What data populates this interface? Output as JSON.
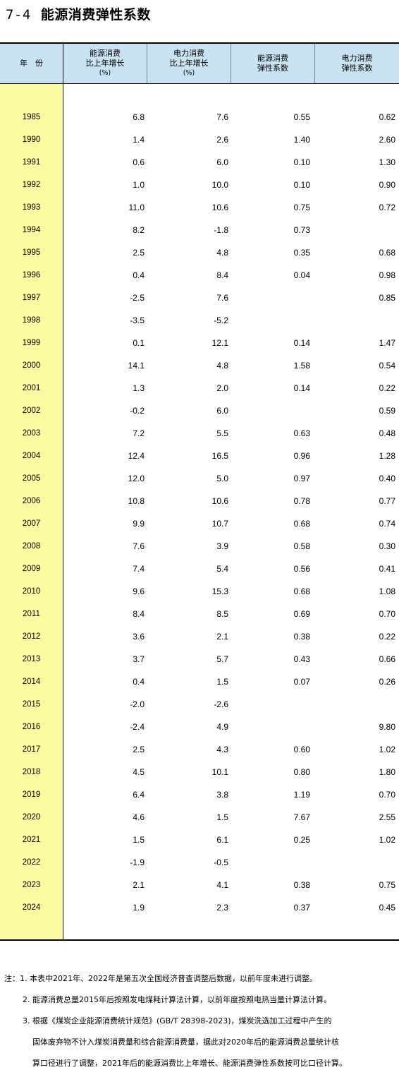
{
  "title": {
    "number": "7-4",
    "text": "能源消费弹性系数"
  },
  "headers": [
    {
      "lines": [
        "年　份"
      ]
    },
    {
      "lines": [
        "能源消费",
        "比上年增长",
        "(%)"
      ]
    },
    {
      "lines": [
        "电力消费",
        "比上年增长",
        "(%)"
      ]
    },
    {
      "lines": [
        "能源消费",
        "弹性系数"
      ]
    },
    {
      "lines": [
        "电力消费",
        "弹性系数"
      ]
    }
  ],
  "rows": [
    {
      "year": "1985",
      "energy_growth": "6.8",
      "power_growth": "7.6",
      "energy_elasticity": "0.55",
      "power_elasticity": "0.62"
    },
    {
      "year": "1990",
      "energy_growth": "1.4",
      "power_growth": "2.6",
      "energy_elasticity": "1.40",
      "power_elasticity": "2.60"
    },
    {
      "year": "1991",
      "energy_growth": "0.6",
      "power_growth": "6.0",
      "energy_elasticity": "0.10",
      "power_elasticity": "1.30"
    },
    {
      "year": "1992",
      "energy_growth": "1.0",
      "power_growth": "10.0",
      "energy_elasticity": "0.10",
      "power_elasticity": "0.90"
    },
    {
      "year": "1993",
      "energy_growth": "11.0",
      "power_growth": "10.6",
      "energy_elasticity": "0.75",
      "power_elasticity": "0.72"
    },
    {
      "year": "1994",
      "energy_growth": "8.2",
      "power_growth": "-1.8",
      "energy_elasticity": "0.73",
      "power_elasticity": ""
    },
    {
      "year": "1995",
      "energy_growth": "2.5",
      "power_growth": "4.8",
      "energy_elasticity": "0.35",
      "power_elasticity": "0.68"
    },
    {
      "year": "1996",
      "energy_growth": "0.4",
      "power_growth": "8.4",
      "energy_elasticity": "0.04",
      "power_elasticity": "0.98"
    },
    {
      "year": "1997",
      "energy_growth": "-2.5",
      "power_growth": "7.6",
      "energy_elasticity": "",
      "power_elasticity": "0.85"
    },
    {
      "year": "1998",
      "energy_growth": "-3.5",
      "power_growth": "-5.2",
      "energy_elasticity": "",
      "power_elasticity": ""
    },
    {
      "year": "1999",
      "energy_growth": "0.1",
      "power_growth": "12.1",
      "energy_elasticity": "0.14",
      "power_elasticity": "1.47"
    },
    {
      "year": "2000",
      "energy_growth": "14.1",
      "power_growth": "4.8",
      "energy_elasticity": "1.58",
      "power_elasticity": "0.54"
    },
    {
      "year": "2001",
      "energy_growth": "1.3",
      "power_growth": "2.0",
      "energy_elasticity": "0.14",
      "power_elasticity": "0.22"
    },
    {
      "year": "2002",
      "energy_growth": "-0.2",
      "power_growth": "6.0",
      "energy_elasticity": "",
      "power_elasticity": "0.59"
    },
    {
      "year": "2003",
      "energy_growth": "7.2",
      "power_growth": "5.5",
      "energy_elasticity": "0.63",
      "power_elasticity": "0.48"
    },
    {
      "year": "2004",
      "energy_growth": "12.4",
      "power_growth": "16.5",
      "energy_elasticity": "0.96",
      "power_elasticity": "1.28"
    },
    {
      "year": "2005",
      "energy_growth": "12.0",
      "power_growth": "5.0",
      "energy_elasticity": "0.97",
      "power_elasticity": "0.40"
    },
    {
      "year": "2006",
      "energy_growth": "10.8",
      "power_growth": "10.6",
      "energy_elasticity": "0.78",
      "power_elasticity": "0.77"
    },
    {
      "year": "2007",
      "energy_growth": "9.9",
      "power_growth": "10.7",
      "energy_elasticity": "0.68",
      "power_elasticity": "0.74"
    },
    {
      "year": "2008",
      "energy_growth": "7.6",
      "power_growth": "3.9",
      "energy_elasticity": "0.58",
      "power_elasticity": "0.30"
    },
    {
      "year": "2009",
      "energy_growth": "7.4",
      "power_growth": "5.4",
      "energy_elasticity": "0.56",
      "power_elasticity": "0.41"
    },
    {
      "year": "2010",
      "energy_growth": "9.6",
      "power_growth": "15.3",
      "energy_elasticity": "0.68",
      "power_elasticity": "1.08"
    },
    {
      "year": "2011",
      "energy_growth": "8.4",
      "power_growth": "8.5",
      "energy_elasticity": "0.69",
      "power_elasticity": "0.70"
    },
    {
      "year": "2012",
      "energy_growth": "3.6",
      "power_growth": "2.1",
      "energy_elasticity": "0.38",
      "power_elasticity": "0.22"
    },
    {
      "year": "2013",
      "energy_growth": "3.7",
      "power_growth": "5.7",
      "energy_elasticity": "0.43",
      "power_elasticity": "0.66"
    },
    {
      "year": "2014",
      "energy_growth": "0.4",
      "power_growth": "1.5",
      "energy_elasticity": "0.07",
      "power_elasticity": "0.26"
    },
    {
      "year": "2015",
      "energy_growth": "-2.0",
      "power_growth": "-2.6",
      "energy_elasticity": "",
      "power_elasticity": ""
    },
    {
      "year": "2016",
      "energy_growth": "-2.4",
      "power_growth": "4.9",
      "energy_elasticity": "",
      "power_elasticity": "9.80"
    },
    {
      "year": "2017",
      "energy_growth": "2.5",
      "power_growth": "4.3",
      "energy_elasticity": "0.60",
      "power_elasticity": "1.02"
    },
    {
      "year": "2018",
      "energy_growth": "4.5",
      "power_growth": "10.1",
      "energy_elasticity": "0.80",
      "power_elasticity": "1.80"
    },
    {
      "year": "2019",
      "energy_growth": "6.4",
      "power_growth": "3.8",
      "energy_elasticity": "1.19",
      "power_elasticity": "0.70"
    },
    {
      "year": "2020",
      "energy_growth": "4.6",
      "power_growth": "1.5",
      "energy_elasticity": "7.67",
      "power_elasticity": "2.55"
    },
    {
      "year": "2021",
      "energy_growth": "1.5",
      "power_growth": "6.1",
      "energy_elasticity": "0.25",
      "power_elasticity": "1.02"
    },
    {
      "year": "2022",
      "energy_growth": "-1.9",
      "power_growth": "-0.5",
      "energy_elasticity": "",
      "power_elasticity": ""
    },
    {
      "year": "2023",
      "energy_growth": "2.1",
      "power_growth": "4.1",
      "energy_elasticity": "0.38",
      "power_elasticity": "0.75"
    },
    {
      "year": "2024",
      "energy_growth": "1.9",
      "power_growth": "2.3",
      "energy_elasticity": "0.37",
      "power_elasticity": "0.45"
    }
  ],
  "notes": [
    "注：1. 本表中2021年、2022年是第五次全国经济普查调整后数据，以前年度未进行调整。",
    "2. 能源消费总量2015年后按照发电煤耗计算法计算，以前年度按照电热当量计算法计算。",
    "3. 根据《煤炭企业能源消费统计规范》(GB/T 28398-2023)，煤炭洗选加工过程中产生的",
    "固体废弃物不计入煤炭消费量和综合能源消费量，据此对2020年后的能源消费总量统计核",
    "算口径进行了调整，2021年后的能源消费比上年增长、能源消费弹性系数按可比口径计算。"
  ]
}
